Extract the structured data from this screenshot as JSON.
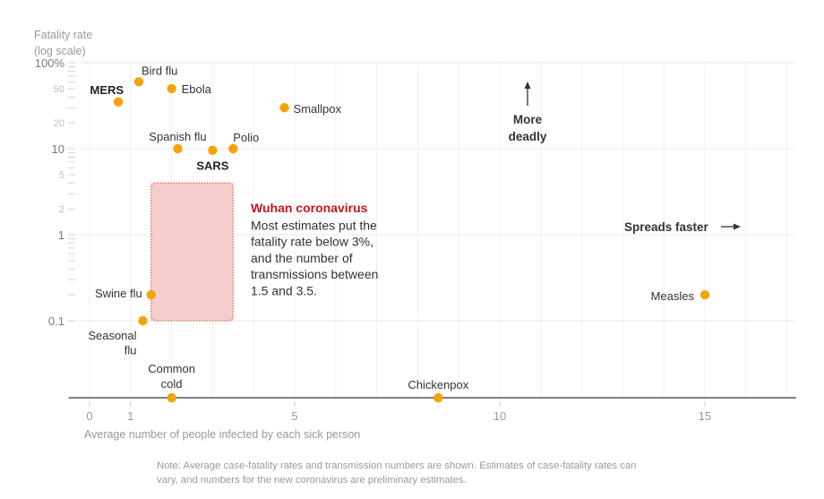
{
  "chart_data": {
    "type": "scatter",
    "title": "",
    "ylabel": "Fatality rate",
    "ylabel_subtitle": "(log scale)",
    "xlabel": "Average number of people infected by each sick person",
    "yscale": "log",
    "xscale": "linear",
    "xlim": [
      -0.5,
      17.2
    ],
    "ylim": [
      0.1,
      100
    ],
    "grid": true,
    "x_ticks": [
      {
        "value": 0,
        "label": "0"
      },
      {
        "value": 1,
        "label": "1"
      },
      {
        "value": 5,
        "label": "5"
      },
      {
        "value": 10,
        "label": "10"
      },
      {
        "value": 15,
        "label": "15"
      }
    ],
    "y_ticks": [
      {
        "value": 100,
        "label": "100%",
        "major": true
      },
      {
        "value": 50,
        "label": "50",
        "major": false
      },
      {
        "value": 20,
        "label": "20",
        "major": false
      },
      {
        "value": 10,
        "label": "10",
        "major": true
      },
      {
        "value": 5,
        "label": "5",
        "major": false
      },
      {
        "value": 2,
        "label": "2",
        "major": false
      },
      {
        "value": 1,
        "label": "1",
        "major": true
      },
      {
        "value": 0.1,
        "label": "0.1",
        "major": true
      }
    ],
    "series": [
      {
        "name": "Diseases",
        "color": "#f5a30a",
        "points": [
          {
            "name": "MERS",
            "x": 0.7,
            "y": 35,
            "label_lines": [
              "MERS"
            ],
            "bold": true
          },
          {
            "name": "Bird flu",
            "x": 1.2,
            "y": 60,
            "label_lines": [
              "Bird flu"
            ],
            "bold": false
          },
          {
            "name": "Ebola",
            "x": 2.0,
            "y": 50,
            "label_lines": [
              "Ebola"
            ],
            "bold": false
          },
          {
            "name": "Smallpox",
            "x": 4.75,
            "y": 30,
            "label_lines": [
              "Smallpox"
            ],
            "bold": false
          },
          {
            "name": "Spanish flu",
            "x": 2.15,
            "y": 10,
            "label_lines": [
              "Spanish flu"
            ],
            "bold": false
          },
          {
            "name": "SARS",
            "x": 3.0,
            "y": 9.6,
            "label_lines": [
              "SARS"
            ],
            "bold": true
          },
          {
            "name": "Polio",
            "x": 3.5,
            "y": 10,
            "label_lines": [
              "Polio"
            ],
            "bold": false
          },
          {
            "name": "Swine flu",
            "x": 1.5,
            "y": 0.2,
            "label_lines": [
              "Swine flu"
            ],
            "bold": false
          },
          {
            "name": "Seasonal flu",
            "x": 1.3,
            "y": 0.1,
            "label_lines": [
              "Seasonal",
              "flu"
            ],
            "bold": false
          },
          {
            "name": "Common cold",
            "x": 2.0,
            "y": 0,
            "label_lines": [
              "Common",
              "cold"
            ],
            "bold": false
          },
          {
            "name": "Chickenpox",
            "x": 8.5,
            "y": 0,
            "label_lines": [
              "Chickenpox"
            ],
            "bold": false
          },
          {
            "name": "Measles",
            "x": 15,
            "y": 0.2,
            "label_lines": [
              "Measles"
            ],
            "bold": false
          }
        ]
      }
    ],
    "highlight": {
      "name": "Wuhan coronavirus",
      "x_range": [
        1.5,
        3.5
      ],
      "y_range": [
        0.1,
        4
      ],
      "title": "Wuhan coronavirus",
      "description_lines": [
        "Most estimates put the",
        "fatality rate below 3%,",
        "and the number of",
        "transmissions between",
        "1.5 and 3.5."
      ],
      "fill": "#f6caca",
      "stroke": "#e8704f",
      "title_color": "#c4161c"
    },
    "annotations": [
      {
        "name": "more-deadly",
        "direction": "up",
        "text_lines": [
          "More",
          "deadly"
        ]
      },
      {
        "name": "spreads-faster",
        "direction": "right",
        "text_lines": [
          "Spreads faster"
        ]
      }
    ],
    "note_lines": [
      "Note: Average case-fatality rates and transmission numbers are shown. Estimates of case-fatality rates can",
      "vary, and numbers for the new coronavirus are preliminary estimates."
    ]
  }
}
